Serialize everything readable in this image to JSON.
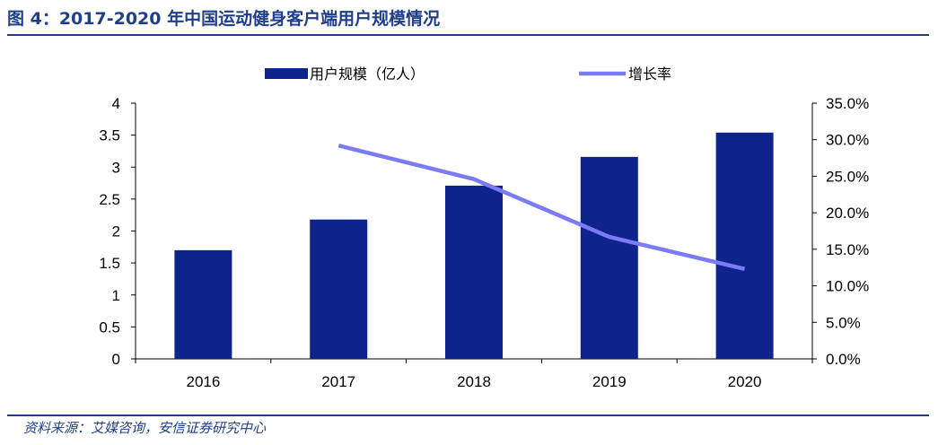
{
  "header": {
    "title": "图 4：2017-2020 年中国运动健身客户端用户规模情况"
  },
  "footer": {
    "source": "资料来源：艾媒咨询，安信证券研究中心"
  },
  "colors": {
    "bar": "#0f238c",
    "line": "#7b7bf7",
    "accent": "#1f3e8c"
  },
  "chart_data": {
    "type": "bar",
    "categories": [
      "2016",
      "2017",
      "2018",
      "2019",
      "2020"
    ],
    "series": [
      {
        "name": "用户规模（亿人）",
        "type": "bar",
        "axis": "left",
        "values": [
          1.7,
          2.18,
          2.71,
          3.16,
          3.54
        ]
      },
      {
        "name": "增长率",
        "type": "line",
        "axis": "right",
        "values": [
          null,
          0.292,
          0.246,
          0.167,
          0.123
        ]
      }
    ],
    "y_left": {
      "ylim": [
        0,
        4
      ],
      "ticks": [
        "0",
        "0.5",
        "1",
        "1.5",
        "2",
        "2.5",
        "3",
        "3.5",
        "4"
      ]
    },
    "y_right": {
      "ylim": [
        0,
        0.35
      ],
      "ticks": [
        "0.0%",
        "5.0%",
        "10.0%",
        "15.0%",
        "20.0%",
        "25.0%",
        "30.0%",
        "35.0%"
      ]
    },
    "legend_position": "top-center",
    "grid": false
  }
}
